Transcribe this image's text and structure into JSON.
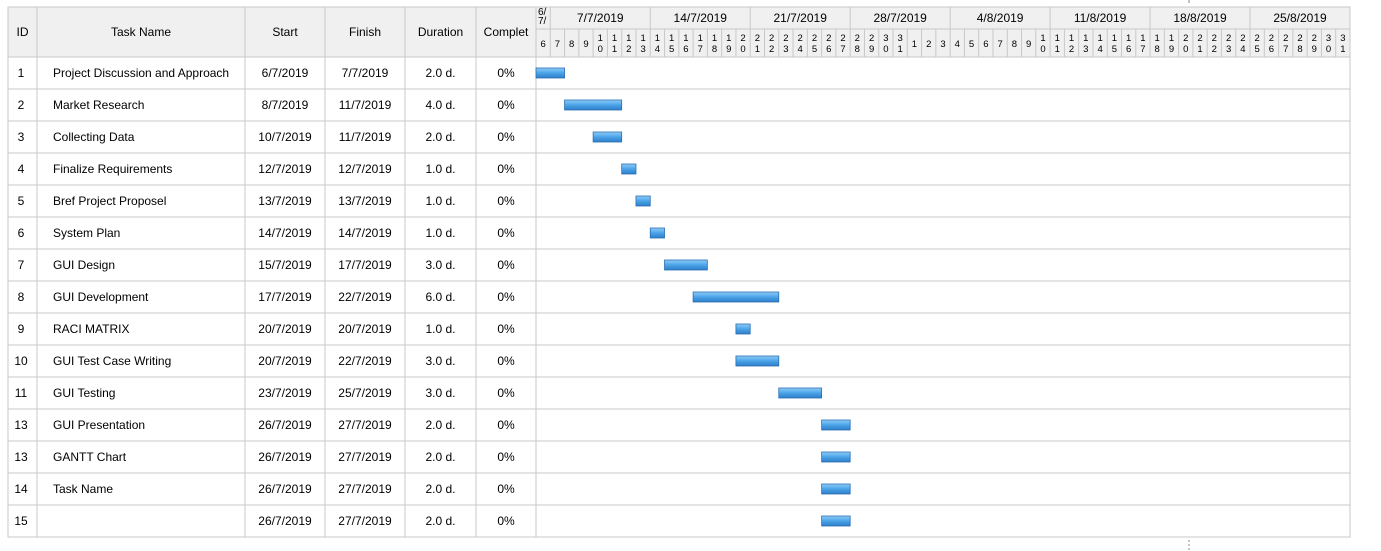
{
  "columns": {
    "id": "ID",
    "task_name": "Task Name",
    "start": "Start",
    "finish": "Finish",
    "duration": "Duration",
    "complete": "Complet"
  },
  "timeline": {
    "first_label": "6/ 7/",
    "week_labels": [
      "7/7/2019",
      "14/7/2019",
      "21/7/2019",
      "28/7/2019",
      "4/8/2019",
      "11/8/2019",
      "18/8/2019",
      "25/8/2019"
    ],
    "day_labels": [
      "6",
      "7",
      "8",
      "9",
      "10",
      "11",
      "12",
      "13",
      "14",
      "15",
      "16",
      "17",
      "18",
      "19",
      "20",
      "21",
      "22",
      "23",
      "24",
      "25",
      "26",
      "27",
      "28",
      "29",
      "30",
      "31",
      "1",
      "2",
      "3",
      "4",
      "5",
      "6",
      "7",
      "8",
      "9",
      "10",
      "11",
      "12",
      "13",
      "14",
      "15",
      "16",
      "17",
      "18",
      "19",
      "20",
      "21",
      "22",
      "23",
      "24",
      "25",
      "26",
      "27",
      "28",
      "29",
      "30",
      "31"
    ]
  },
  "chart_data": {
    "type": "gantt",
    "timeline_start": "2019-07-06",
    "timeline_end": "2019-08-31",
    "bar_color": "#4ba3e8",
    "tasks": [
      {
        "id": "1",
        "name": "Project Discussion and Approach",
        "start": "6/7/2019",
        "finish": "7/7/2019",
        "duration": "2.0 d.",
        "complete": "0%"
      },
      {
        "id": "2",
        "name": "Market Research",
        "start": "8/7/2019",
        "finish": "11/7/2019",
        "duration": "4.0 d.",
        "complete": "0%"
      },
      {
        "id": "3",
        "name": "Collecting Data",
        "start": "10/7/2019",
        "finish": "11/7/2019",
        "duration": "2.0 d.",
        "complete": "0%"
      },
      {
        "id": "4",
        "name": "Finalize Requirements",
        "start": "12/7/2019",
        "finish": "12/7/2019",
        "duration": "1.0 d.",
        "complete": "0%"
      },
      {
        "id": "5",
        "name": "Bref Project Proposel",
        "start": "13/7/2019",
        "finish": "13/7/2019",
        "duration": "1.0 d.",
        "complete": "0%"
      },
      {
        "id": "6",
        "name": "System Plan",
        "start": "14/7/2019",
        "finish": "14/7/2019",
        "duration": "1.0 d.",
        "complete": "0%"
      },
      {
        "id": "7",
        "name": "GUI Design",
        "start": "15/7/2019",
        "finish": "17/7/2019",
        "duration": "3.0 d.",
        "complete": "0%"
      },
      {
        "id": "8",
        "name": "GUI Development",
        "start": "17/7/2019",
        "finish": "22/7/2019",
        "duration": "6.0 d.",
        "complete": "0%"
      },
      {
        "id": "9",
        "name": "RACI MATRIX",
        "start": "20/7/2019",
        "finish": "20/7/2019",
        "duration": "1.0 d.",
        "complete": "0%"
      },
      {
        "id": "10",
        "name": "GUI Test Case Writing",
        "start": "20/7/2019",
        "finish": "22/7/2019",
        "duration": "3.0 d.",
        "complete": "0%"
      },
      {
        "id": "11",
        "name": "GUI Testing",
        "start": "23/7/2019",
        "finish": "25/7/2019",
        "duration": "3.0 d.",
        "complete": "0%"
      },
      {
        "id": "13",
        "name": "GUI Presentation",
        "start": "26/7/2019",
        "finish": "27/7/2019",
        "duration": "2.0 d.",
        "complete": "0%"
      },
      {
        "id": "13",
        "name": "GANTT Chart",
        "start": "26/7/2019",
        "finish": "27/7/2019",
        "duration": "2.0 d.",
        "complete": "0%"
      },
      {
        "id": "14",
        "name": "Task Name",
        "start": "26/7/2019",
        "finish": "27/7/2019",
        "duration": "2.0 d.",
        "complete": "0%"
      },
      {
        "id": "15",
        "name": "",
        "start": "26/7/2019",
        "finish": "27/7/2019",
        "duration": "2.0 d.",
        "complete": "0%"
      }
    ]
  }
}
